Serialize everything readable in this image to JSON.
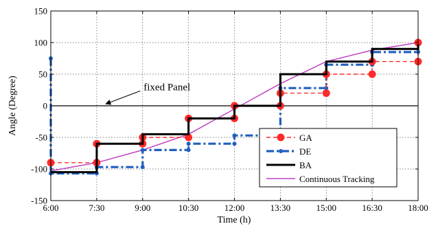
{
  "chart_data": {
    "type": "line",
    "xlabel": "Time (h)",
    "ylabel": "Angle (Degree)",
    "xlim": [
      6,
      18
    ],
    "ylim": [
      -150,
      150
    ],
    "x_ticks": [
      {
        "value": 6,
        "label": "6:00"
      },
      {
        "value": 7.5,
        "label": "7:30"
      },
      {
        "value": 9,
        "label": "9:00"
      },
      {
        "value": 10.5,
        "label": "10:30"
      },
      {
        "value": 12,
        "label": "12:00"
      },
      {
        "value": 13.5,
        "label": "13:30"
      },
      {
        "value": 15,
        "label": "15:00"
      },
      {
        "value": 16.5,
        "label": "16:30"
      },
      {
        "value": 18,
        "label": "18:00"
      }
    ],
    "y_ticks": [
      -150,
      -100,
      -50,
      0,
      50,
      100,
      150
    ],
    "grid": true,
    "legend_position": "bottom-right",
    "series": [
      {
        "name": "GA",
        "color": "#ff2a2a",
        "line_style": "dashed",
        "marker": "large-circle",
        "points": [
          [
            6,
            -90
          ],
          [
            7.5,
            -90
          ],
          [
            7.5,
            -60
          ],
          [
            9,
            -60
          ],
          [
            9,
            -50
          ],
          [
            10.5,
            -50
          ],
          [
            10.5,
            -20
          ],
          [
            12,
            -20
          ],
          [
            12,
            0
          ],
          [
            13.5,
            0
          ],
          [
            13.5,
            20
          ],
          [
            15,
            20
          ],
          [
            15,
            50
          ],
          [
            16.5,
            50
          ],
          [
            16.5,
            70
          ],
          [
            18,
            70
          ],
          [
            18,
            100
          ]
        ]
      },
      {
        "name": "DE",
        "color": "#1f5fbf",
        "line_style": "dash-dot",
        "marker": "small-circle",
        "points": [
          [
            6,
            75
          ],
          [
            6,
            -107
          ],
          [
            7.5,
            -107
          ],
          [
            7.5,
            -97
          ],
          [
            9,
            -97
          ],
          [
            9,
            -70
          ],
          [
            10.5,
            -70
          ],
          [
            10.5,
            -60
          ],
          [
            12,
            -60
          ],
          [
            12,
            -47
          ],
          [
            13.5,
            -47
          ],
          [
            13.5,
            28
          ],
          [
            15,
            28
          ],
          [
            15,
            65
          ],
          [
            16.5,
            65
          ],
          [
            16.5,
            85
          ],
          [
            18,
            85
          ],
          [
            18,
            103
          ]
        ]
      },
      {
        "name": "BA",
        "color": "#000000",
        "line_style": "solid",
        "marker": "none",
        "points": [
          [
            6,
            -105
          ],
          [
            7.5,
            -105
          ],
          [
            7.5,
            -60
          ],
          [
            9,
            -60
          ],
          [
            9,
            -45
          ],
          [
            10.5,
            -45
          ],
          [
            10.5,
            -20
          ],
          [
            12,
            -20
          ],
          [
            12,
            0
          ],
          [
            13.5,
            0
          ],
          [
            13.5,
            50
          ],
          [
            15,
            50
          ],
          [
            15,
            70
          ],
          [
            16.5,
            70
          ],
          [
            16.5,
            90
          ],
          [
            18,
            90
          ],
          [
            18,
            97
          ]
        ]
      },
      {
        "name": "Continuous Tracking",
        "color": "#c040c0",
        "line_style": "solid",
        "marker": "none",
        "points": [
          [
            6,
            -103
          ],
          [
            7.5,
            -90
          ],
          [
            9,
            -70
          ],
          [
            10.5,
            -45
          ],
          [
            12,
            -5
          ],
          [
            13.5,
            35
          ],
          [
            15,
            70
          ],
          [
            16.5,
            88
          ],
          [
            18,
            100
          ]
        ]
      },
      {
        "name": "fixed Panel",
        "color": "#000000",
        "line_style": "solid",
        "marker": "none",
        "points": [
          [
            6,
            0
          ],
          [
            18,
            0
          ]
        ]
      }
    ],
    "annotations": [
      {
        "text": "fixed Panel",
        "x": 10.2,
        "y": 30,
        "arrow_to": [
          7.8,
          3
        ]
      }
    ]
  }
}
